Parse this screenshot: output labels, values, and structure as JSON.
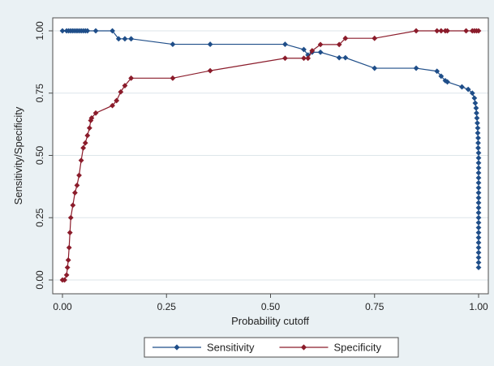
{
  "chart_data": {
    "type": "line",
    "title": "",
    "xlabel": "Probability cutoff",
    "ylabel": "Sensitivity/Specificity",
    "xlim": [
      0,
      1
    ],
    "ylim": [
      0,
      1
    ],
    "x_ticks": [
      0,
      0.25,
      0.5,
      0.75,
      1
    ],
    "x_tick_labels": [
      "0.00",
      "0.25",
      "0.50",
      "0.75",
      "1.00"
    ],
    "y_ticks": [
      0,
      0.25,
      0.5,
      0.75,
      1
    ],
    "y_tick_labels": [
      "0.00",
      "0.25",
      "0.50",
      "0.75",
      "1.00"
    ],
    "grid": "horizontal",
    "legend_position": "bottom",
    "series": [
      {
        "name": "Sensitivity",
        "color": "#1f4e89",
        "marker": "diamond",
        "x": [
          0.0,
          0.01,
          0.015,
          0.02,
          0.025,
          0.03,
          0.035,
          0.04,
          0.045,
          0.05,
          0.055,
          0.06,
          0.08,
          0.12,
          0.135,
          0.15,
          0.165,
          0.265,
          0.355,
          0.535,
          0.58,
          0.59,
          0.6,
          0.62,
          0.665,
          0.68,
          0.75,
          0.85,
          0.9,
          0.91,
          0.92,
          0.925,
          0.96,
          0.975,
          0.985,
          0.99,
          0.992,
          0.994,
          0.995,
          0.996,
          0.997,
          0.998,
          0.998,
          0.999,
          0.999,
          0.999,
          1.0,
          1.0,
          1.0,
          1.0,
          1.0,
          1.0,
          1.0,
          1.0,
          1.0,
          1.0,
          1.0,
          1.0,
          1.0,
          1.0,
          1.0,
          1.0,
          1.0,
          1.0,
          1.0,
          1.0,
          1.0,
          1.0,
          1.0,
          1.0
        ],
        "y": [
          1.0,
          1.0,
          1.0,
          1.0,
          1.0,
          1.0,
          1.0,
          1.0,
          1.0,
          1.0,
          1.0,
          1.0,
          1.0,
          1.0,
          0.968,
          0.968,
          0.968,
          0.946,
          0.946,
          0.946,
          0.925,
          0.903,
          0.914,
          0.914,
          0.892,
          0.892,
          0.85,
          0.85,
          0.838,
          0.818,
          0.8,
          0.795,
          0.775,
          0.765,
          0.75,
          0.73,
          0.71,
          0.69,
          0.67,
          0.65,
          0.63,
          0.61,
          0.59,
          0.57,
          0.55,
          0.53,
          0.51,
          0.49,
          0.47,
          0.45,
          0.43,
          0.41,
          0.39,
          0.37,
          0.35,
          0.33,
          0.31,
          0.29,
          0.27,
          0.25,
          0.23,
          0.21,
          0.19,
          0.17,
          0.15,
          0.13,
          0.11,
          0.09,
          0.07,
          0.05
        ]
      },
      {
        "name": "Specificity",
        "color": "#8b1c2b",
        "marker": "diamond",
        "x": [
          0.0,
          0.005,
          0.01,
          0.012,
          0.014,
          0.016,
          0.018,
          0.02,
          0.025,
          0.03,
          0.035,
          0.04,
          0.045,
          0.05,
          0.055,
          0.06,
          0.065,
          0.068,
          0.07,
          0.08,
          0.12,
          0.13,
          0.14,
          0.15,
          0.165,
          0.265,
          0.355,
          0.535,
          0.58,
          0.59,
          0.6,
          0.62,
          0.665,
          0.68,
          0.75,
          0.85,
          0.9,
          0.91,
          0.92,
          0.925,
          0.97,
          0.985,
          0.99,
          0.995,
          1.0
        ],
        "y": [
          0.0,
          0.0,
          0.02,
          0.05,
          0.08,
          0.13,
          0.19,
          0.25,
          0.3,
          0.35,
          0.38,
          0.42,
          0.48,
          0.53,
          0.55,
          0.58,
          0.61,
          0.64,
          0.65,
          0.67,
          0.7,
          0.72,
          0.755,
          0.78,
          0.81,
          0.81,
          0.84,
          0.89,
          0.89,
          0.89,
          0.92,
          0.945,
          0.945,
          0.97,
          0.97,
          1.0,
          1.0,
          1.0,
          1.0,
          1.0,
          1.0,
          1.0,
          1.0,
          1.0,
          1.0
        ]
      }
    ]
  }
}
